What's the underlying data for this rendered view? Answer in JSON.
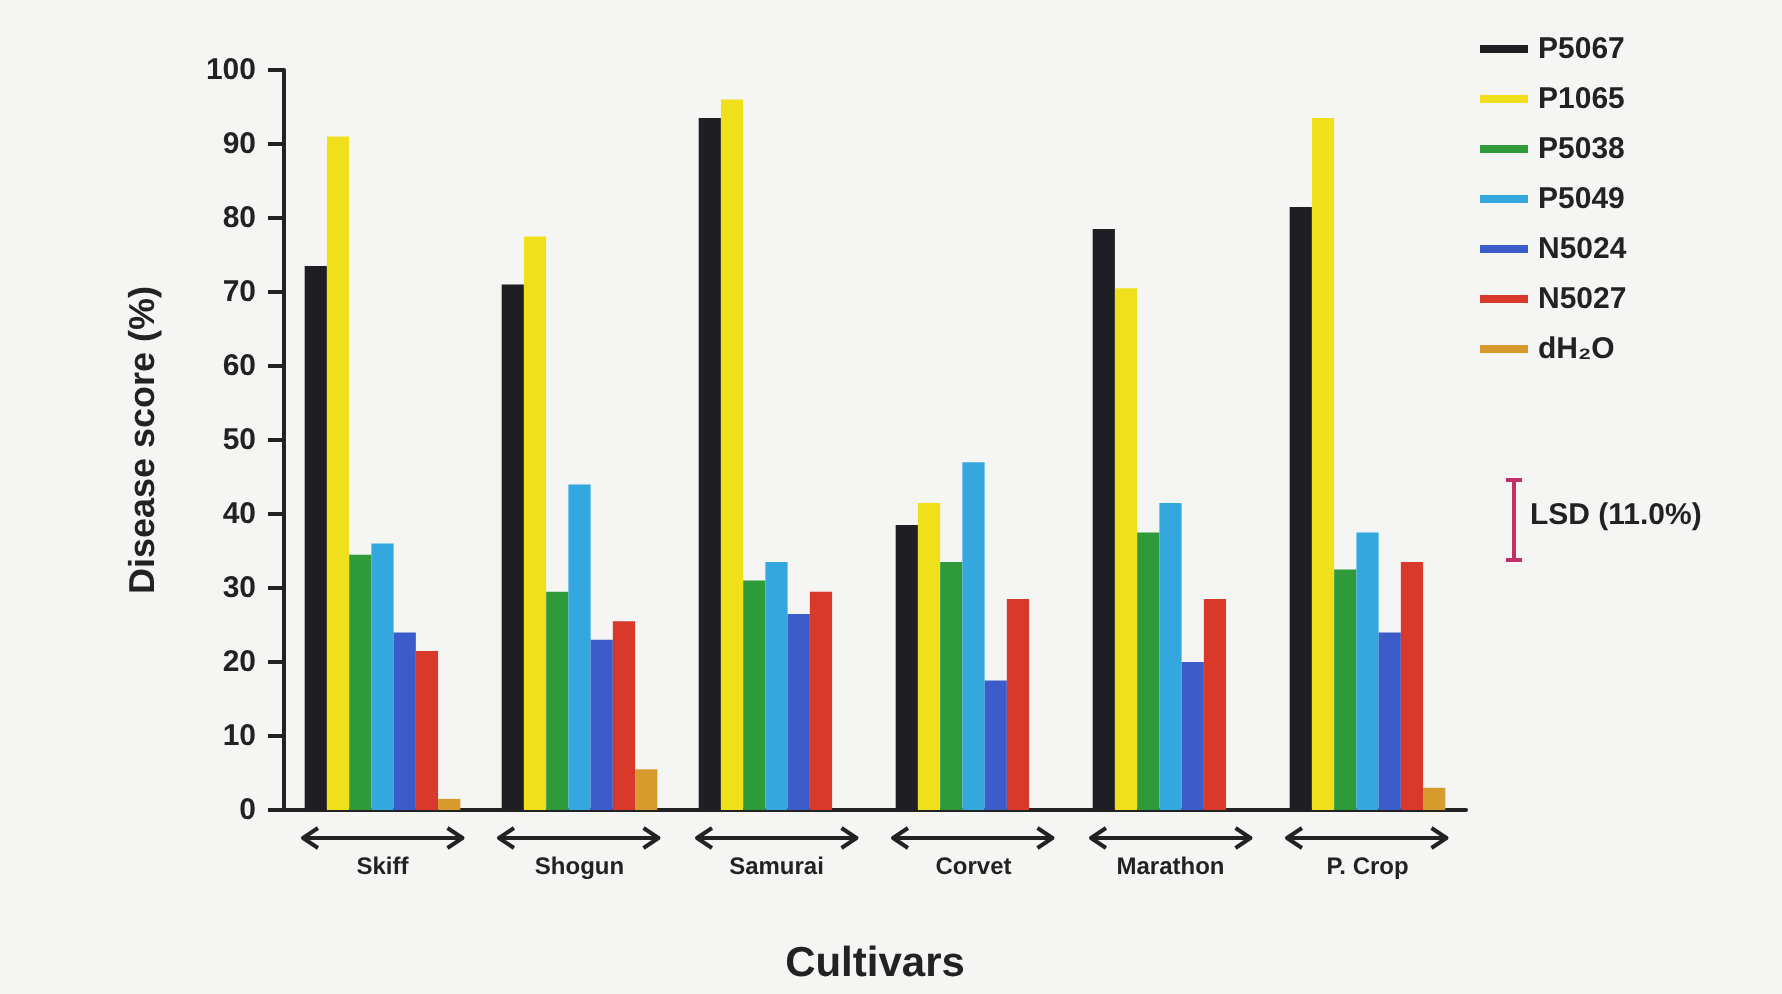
{
  "chart_data": {
    "type": "bar",
    "xlabel": "Cultivars",
    "ylabel": "Disease score (%)",
    "categories": [
      "Skiff",
      "Shogun",
      "Samurai",
      "Corvet",
      "Marathon",
      "P. Crop"
    ],
    "series": [
      {
        "name": "P5067",
        "color": "#1f1f23",
        "values": [
          73.5,
          71,
          93.5,
          38.5,
          78.5,
          81.5
        ]
      },
      {
        "name": "P1065",
        "color": "#f0e01c",
        "values": [
          91,
          77.5,
          96,
          41.5,
          70.5,
          93.5
        ]
      },
      {
        "name": "P5038",
        "color": "#2f9a3a",
        "values": [
          34.5,
          29.5,
          31,
          33.5,
          37.5,
          32.5
        ]
      },
      {
        "name": "P5049",
        "color": "#34a8de",
        "values": [
          36,
          44,
          33.5,
          47,
          41.5,
          37.5
        ]
      },
      {
        "name": "N5024",
        "color": "#3b5cc9",
        "values": [
          24,
          23,
          26.5,
          17.5,
          20,
          24
        ]
      },
      {
        "name": "N5027",
        "color": "#d8392b",
        "values": [
          21.5,
          25.5,
          29.5,
          28.5,
          28.5,
          33.5
        ]
      },
      {
        "name": "dH₂O",
        "color": "#d89a2c",
        "values": [
          1.5,
          5.5,
          null,
          null,
          null,
          3
        ]
      }
    ],
    "ylim": [
      0,
      100
    ],
    "yticks": [
      0,
      10,
      20,
      30,
      40,
      50,
      60,
      70,
      80,
      90,
      100
    ],
    "legend": "top right",
    "annotations": [
      "LSD (11.0%)"
    ]
  }
}
